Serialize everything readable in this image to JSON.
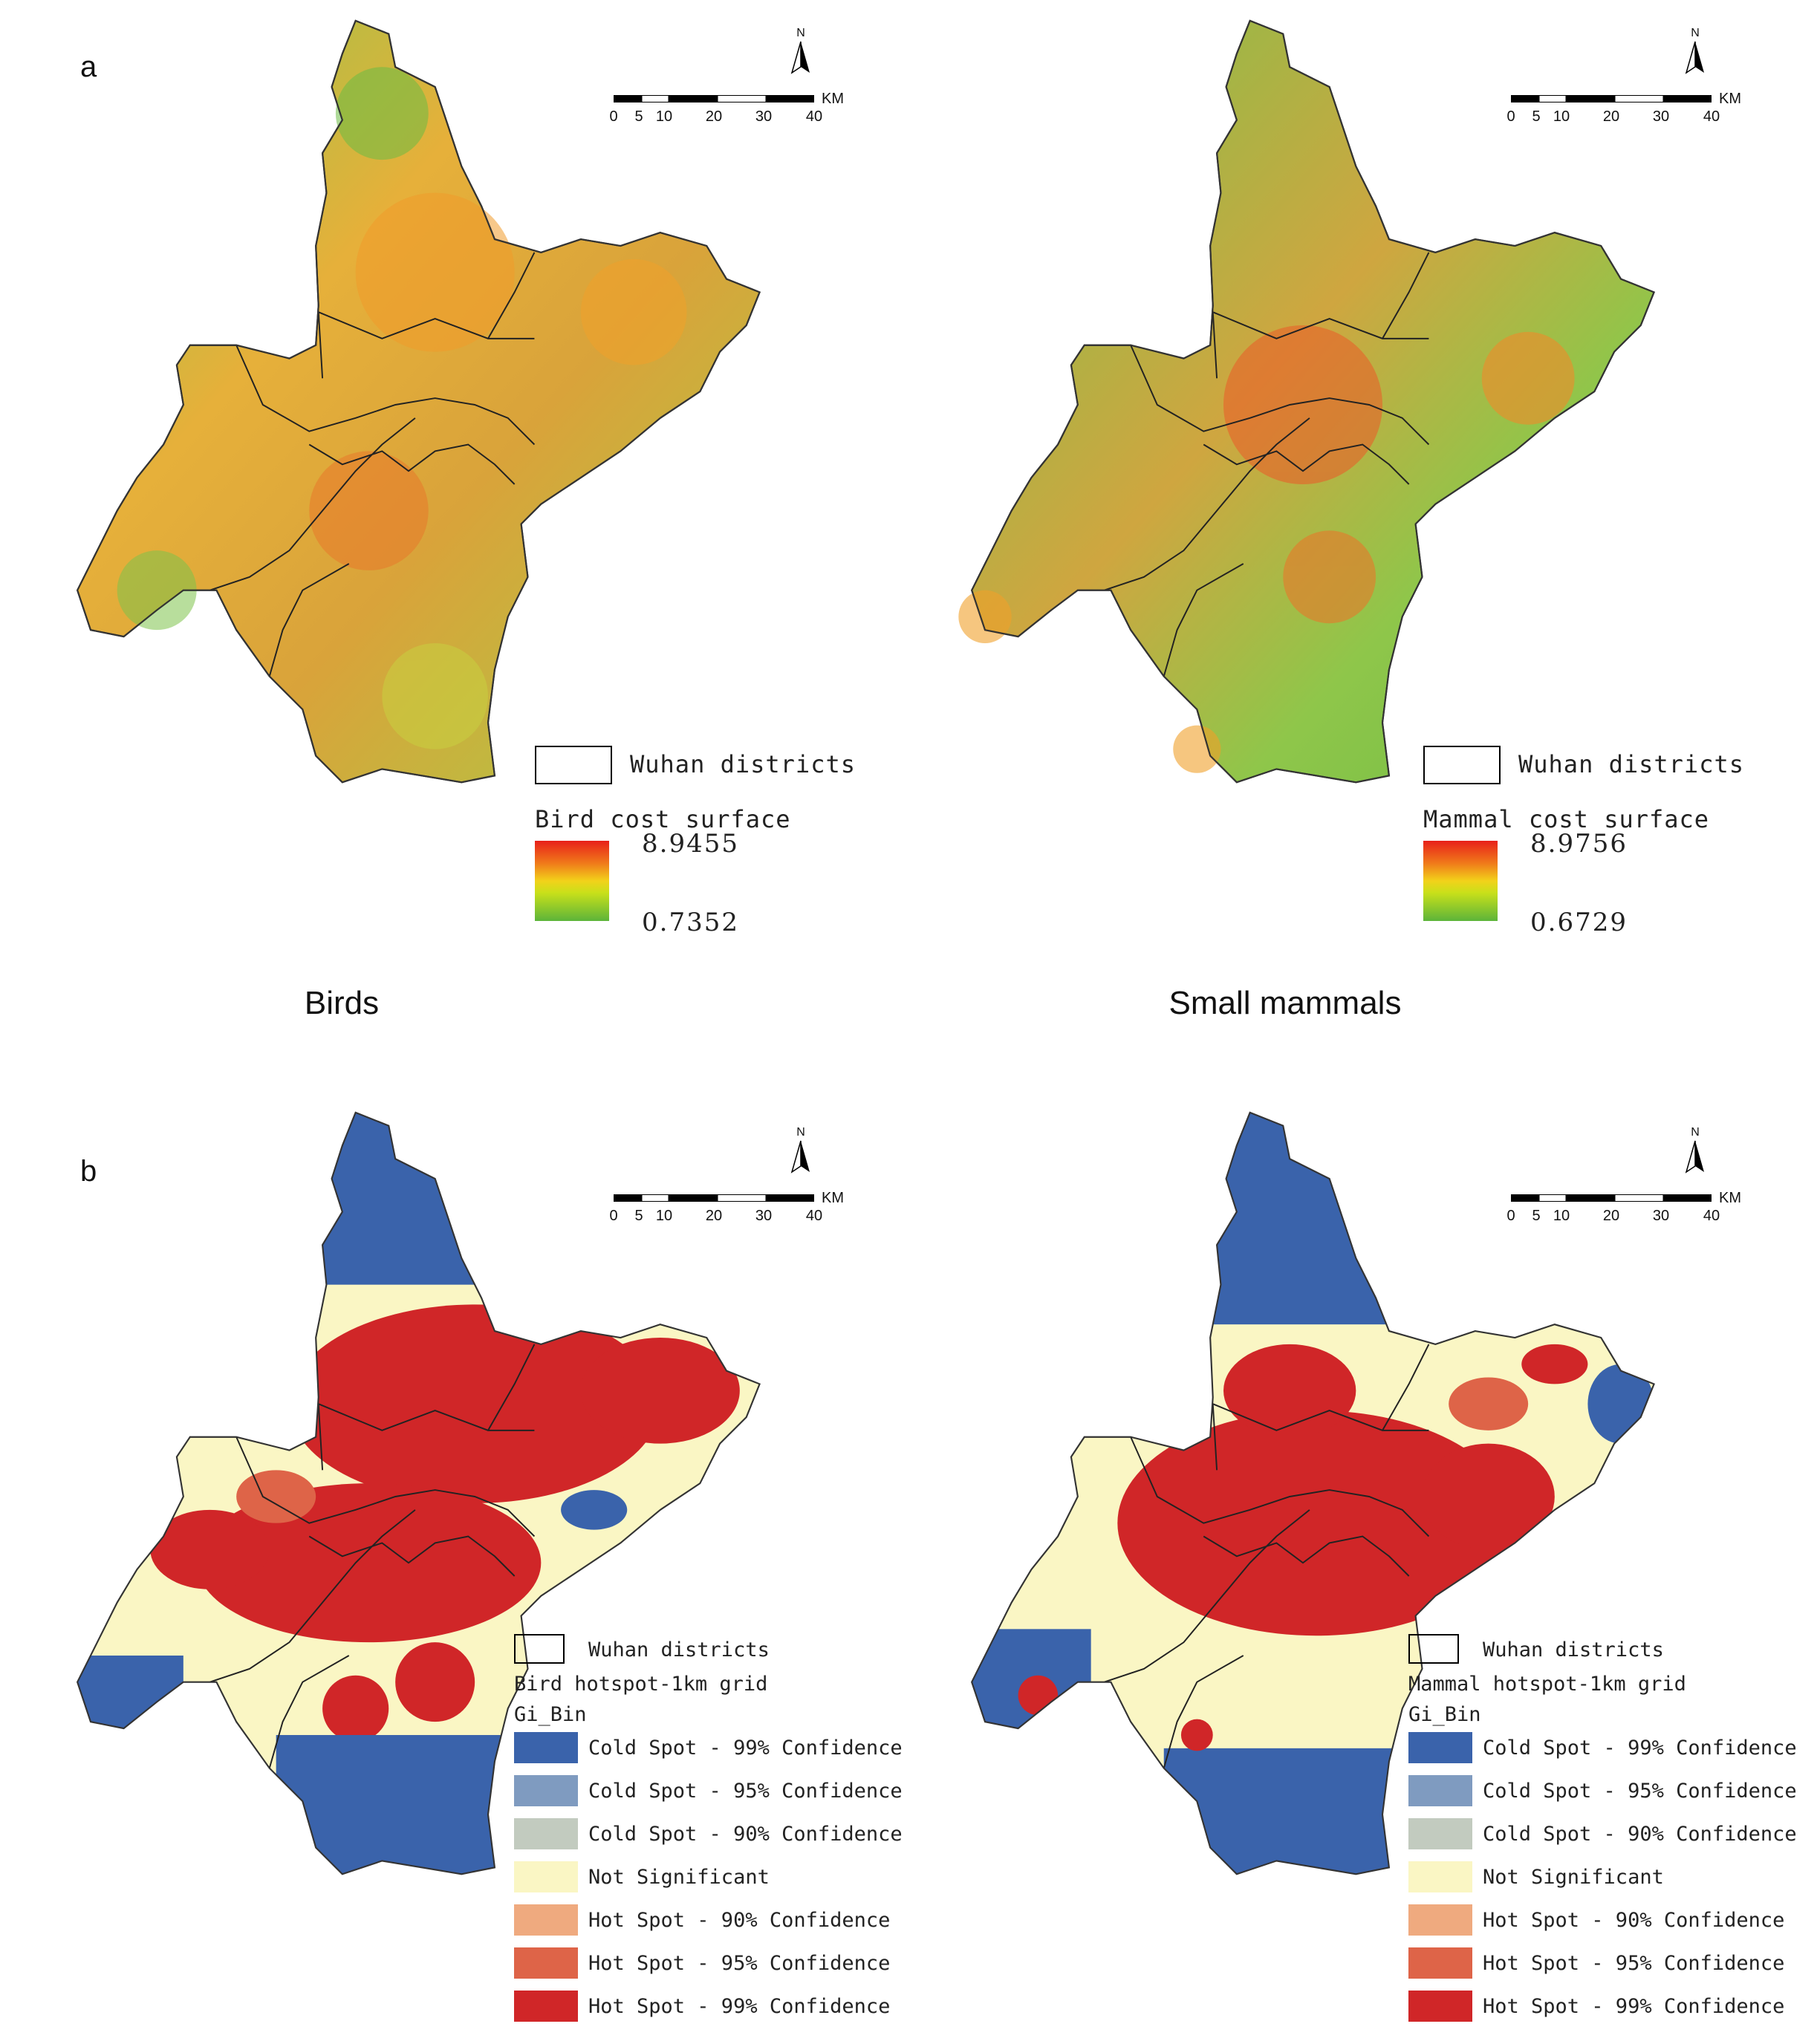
{
  "panels": {
    "a": {
      "letter": "a"
    },
    "b": {
      "letter": "b"
    }
  },
  "columns": {
    "left": "Birds",
    "right": "Small mammals"
  },
  "scale_bar": {
    "unit": "KM",
    "ticks": [
      "0",
      "5",
      "10",
      "20",
      "30",
      "40"
    ]
  },
  "north_arrow": {
    "label": "N"
  },
  "legends": {
    "bird_cost": {
      "districts": "Wuhan districts",
      "title": "Bird cost surface",
      "max": "8.9455",
      "min": "0.7352"
    },
    "mammal_cost": {
      "districts": "Wuhan districts",
      "title": "Mammal cost surface",
      "max": "8.9756",
      "min": "0.6729"
    },
    "bird_hotspot": {
      "districts": "Wuhan districts",
      "title": "Bird hotspot-1km grid",
      "field": "Gi_Bin"
    },
    "mammal_hotspot": {
      "districts": "Wuhan districts",
      "title": "Mammal hotspot-1km grid",
      "field": "Gi_Bin"
    }
  },
  "hotspot_classes": [
    {
      "label": "Cold Spot - 99% Confidence",
      "color": "#3a63ab"
    },
    {
      "label": "Cold Spot - 95% Confidence",
      "color": "#7f9bc0"
    },
    {
      "label": "Cold Spot - 90% Confidence",
      "color": "#c2cbbf"
    },
    {
      "label": "Not Significant",
      "color": "#faf6c4"
    },
    {
      "label": "Hot Spot - 90% Confidence",
      "color": "#efaa7f"
    },
    {
      "label": "Hot Spot - 95% Confidence",
      "color": "#de6448"
    },
    {
      "label": "Hot Spot - 99% Confidence",
      "color": "#d02628"
    }
  ],
  "colors": {
    "cost_high": "#e8201a",
    "cost_mid": "#f2d21a",
    "cost_low": "#5cb43a",
    "bird_cost_fill": "#d8b83a",
    "mammal_cost_fill": "#9cc84a"
  }
}
